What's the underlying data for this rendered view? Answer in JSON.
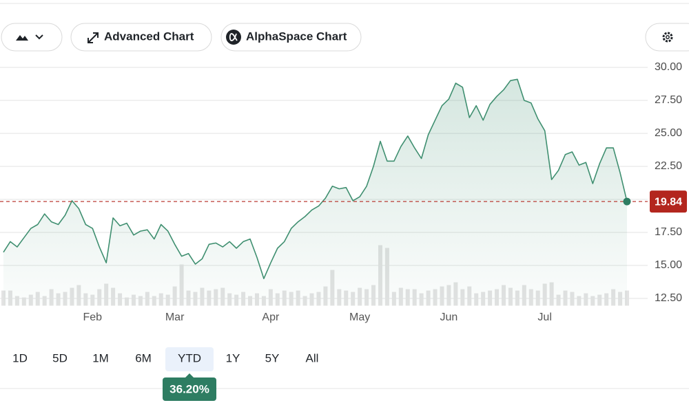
{
  "toolbar": {
    "buttons": [
      "Advanced Chart",
      "AlphaSpace Chart"
    ]
  },
  "ranges": [
    "1D",
    "5D",
    "1M",
    "6M",
    "YTD",
    "1Y",
    "5Y",
    "All"
  ],
  "selected_range": 4,
  "period_change": "36.20%",
  "chart_data": {
    "type": "line",
    "categories": [
      null,
      null,
      null,
      null,
      null,
      null,
      null,
      null,
      null,
      null,
      null,
      null,
      null,
      "Feb",
      null,
      null,
      null,
      null,
      null,
      null,
      null,
      null,
      null,
      null,
      null,
      "Mar",
      null,
      null,
      null,
      null,
      null,
      null,
      null,
      null,
      null,
      null,
      null,
      null,
      null,
      "Apr",
      null,
      null,
      null,
      null,
      null,
      null,
      null,
      null,
      null,
      null,
      null,
      null,
      "May",
      null,
      null,
      null,
      null,
      null,
      null,
      null,
      null,
      null,
      null,
      null,
      null,
      "Jun",
      null,
      null,
      null,
      null,
      null,
      null,
      null,
      null,
      null,
      null,
      null,
      null,
      null,
      "Jul",
      null,
      null,
      null,
      null,
      null,
      null,
      null,
      null,
      null,
      null,
      null,
      null
    ],
    "values": [
      16.0,
      16.8,
      16.4,
      17.1,
      17.8,
      18.1,
      18.9,
      18.3,
      18.1,
      18.8,
      19.9,
      19.3,
      18.1,
      17.8,
      16.4,
      15.2,
      18.6,
      18.0,
      18.2,
      17.3,
      17.6,
      17.7,
      17.0,
      18.1,
      17.6,
      16.6,
      15.7,
      15.9,
      15.1,
      15.5,
      16.6,
      16.7,
      16.4,
      16.8,
      16.3,
      16.8,
      17.0,
      15.6,
      14.0,
      15.2,
      16.3,
      16.8,
      17.8,
      18.3,
      18.7,
      19.2,
      19.5,
      20.1,
      21.0,
      20.8,
      20.9,
      19.9,
      20.2,
      21.0,
      22.5,
      24.4,
      22.9,
      22.9,
      24.0,
      24.8,
      23.9,
      23.1,
      24.9,
      26.0,
      27.1,
      27.6,
      28.8,
      28.5,
      26.2,
      27.1,
      26.0,
      27.2,
      27.8,
      28.3,
      29.0,
      29.1,
      27.5,
      27.3,
      26.1,
      25.2,
      21.5,
      22.2,
      23.4,
      23.6,
      22.6,
      22.8,
      21.2,
      22.7,
      23.9,
      23.9,
      22.0,
      19.84
    ],
    "color": "#3f8f70",
    "volume": [
      22,
      22,
      14,
      12,
      16,
      20,
      14,
      24,
      18,
      20,
      26,
      30,
      18,
      16,
      24,
      32,
      26,
      18,
      12,
      16,
      14,
      20,
      14,
      18,
      16,
      28,
      60,
      22,
      20,
      26,
      22,
      24,
      26,
      18,
      16,
      20,
      14,
      18,
      14,
      24,
      18,
      22,
      20,
      22,
      14,
      18,
      20,
      28,
      52,
      24,
      22,
      20,
      26,
      24,
      30,
      88,
      84,
      20,
      26,
      24,
      24,
      18,
      22,
      24,
      28,
      30,
      34,
      24,
      28,
      18,
      20,
      22,
      24,
      30,
      26,
      22,
      30,
      24,
      22,
      32,
      34,
      16,
      22,
      20,
      14,
      18,
      14,
      16,
      18,
      24,
      20,
      22
    ],
    "volume_color": "#e3e3e3",
    "y2lim": [
      0,
      100
    ],
    "ylim": [
      11.95,
      30.25
    ],
    "yticks": [
      {
        "value": 12.5,
        "label": "12.50"
      },
      {
        "value": 15,
        "label": "15.00"
      },
      {
        "value": 17.5,
        "label": "17.50"
      },
      {
        "value": 20,
        "label": "20.00"
      },
      {
        "value": 22.5,
        "label": "22.50"
      },
      {
        "value": 25,
        "label": "25.00"
      },
      {
        "value": 27.5,
        "label": "27.50"
      },
      {
        "value": 30,
        "label": "30.00"
      }
    ],
    "grid": true,
    "last_value_color": "#b3261e"
  }
}
